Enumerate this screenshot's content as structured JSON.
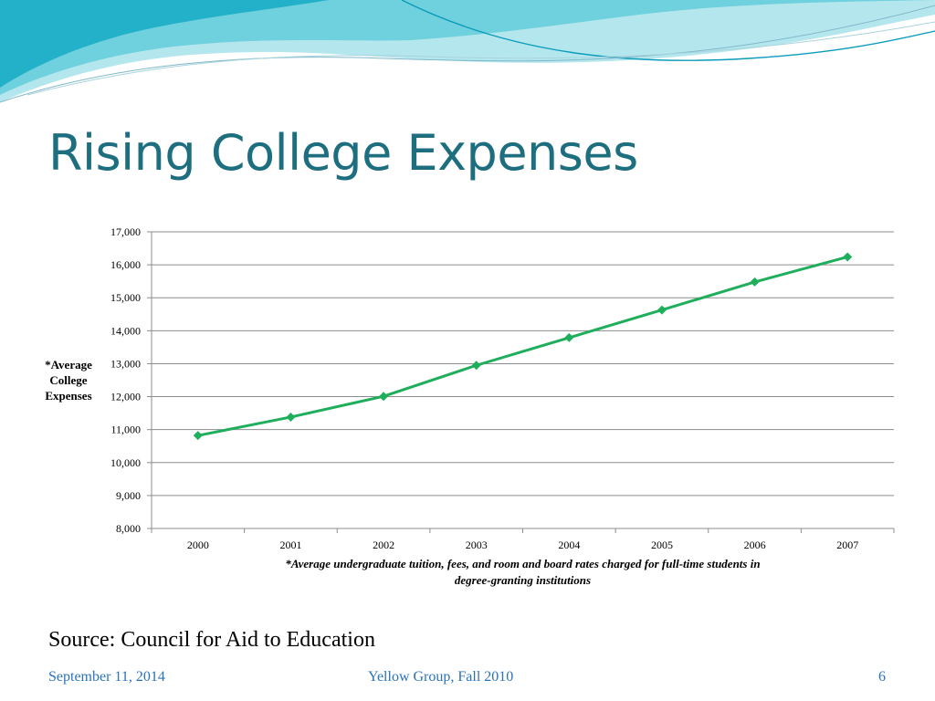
{
  "slide": {
    "title": "Rising College Expenses",
    "source": "Source: Council for Aid to Education",
    "footer": {
      "date": "September 11, 2014",
      "center": "Yellow Group, Fall 2010",
      "page": "6"
    }
  },
  "colors": {
    "title": "#1d6f7f",
    "series": "#1fae5c",
    "grid": "#8c8c8c",
    "footer": "#2a73b8",
    "wave_light": "#9fdde6",
    "wave_mid": "#4fc7d8",
    "wave_dark": "#1aa6c0"
  },
  "chart_data": {
    "type": "line",
    "x": [
      "2000",
      "2001",
      "2002",
      "2003",
      "2004",
      "2005",
      "2006",
      "2007"
    ],
    "series": [
      {
        "values": [
          10820,
          11380,
          12010,
          12950,
          13790,
          14630,
          15480,
          16240
        ]
      }
    ],
    "ylim": [
      8000,
      17000
    ],
    "yticks": [
      "8,000",
      "9,000",
      "10,000",
      "11,000",
      "12,000",
      "13,000",
      "14,000",
      "15,000",
      "16,000",
      "17,000"
    ],
    "ylabel": "*Average College Expenses",
    "footnote": "*Average undergraduate tuition, fees, and room and board rates charged for full-time students in degree-granting institutions",
    "grid": true,
    "marker": "diamond",
    "legend": "none"
  }
}
